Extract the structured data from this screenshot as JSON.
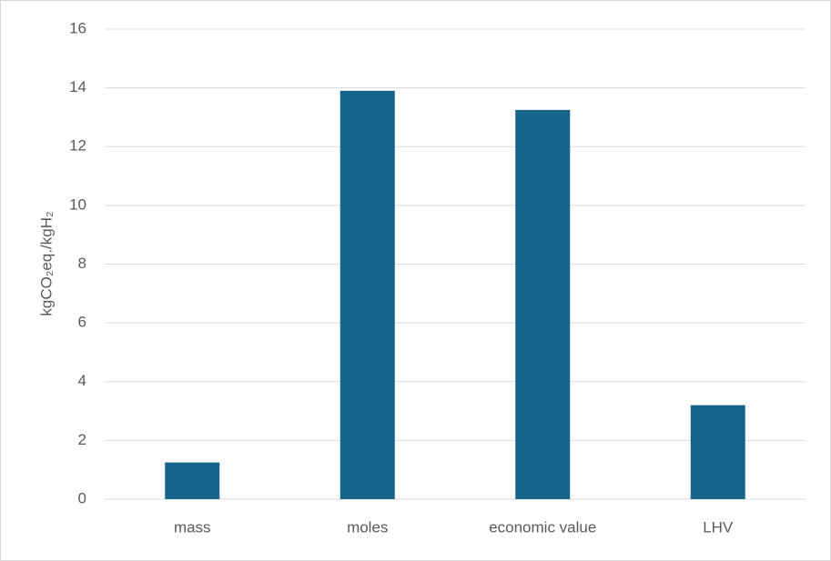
{
  "chart_data": {
    "type": "bar",
    "y_label": "kgCO₂eq./kgH₂",
    "categories": [
      "mass",
      "moles",
      "economic value",
      "LHV"
    ],
    "values": [
      1.25,
      13.9,
      13.25,
      3.2
    ],
    "color": "#17648a",
    "ylim": [
      0,
      16
    ],
    "yticks": [
      0,
      2,
      4,
      6,
      8,
      10,
      12,
      14,
      16
    ],
    "grid": true
  }
}
